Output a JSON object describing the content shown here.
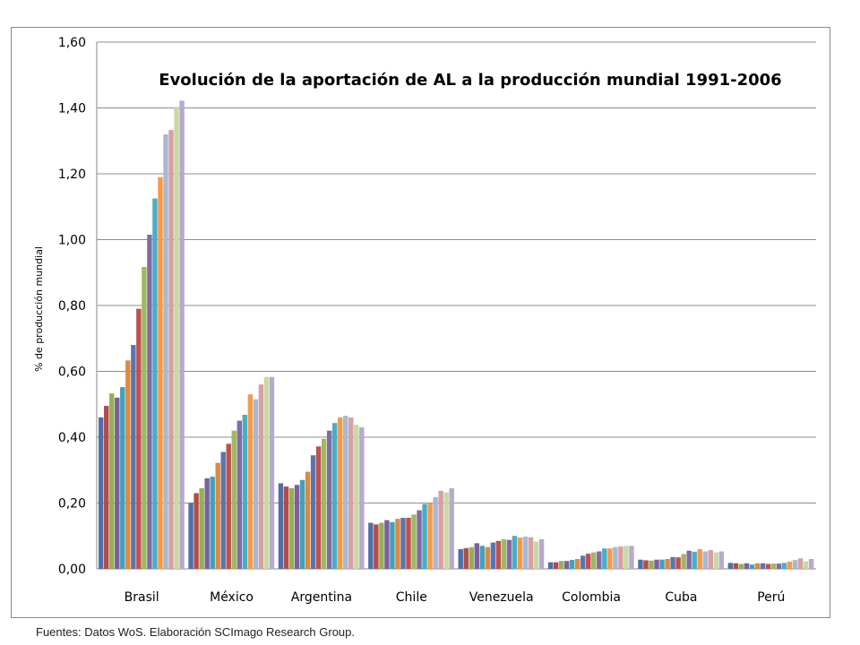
{
  "chart_data": {
    "type": "bar",
    "title": "Evolución de la aportación de AL a la producción mundial 1991-2006",
    "xlabel": "",
    "ylabel": "% de producción mundial",
    "ylim": [
      0,
      1.6
    ],
    "yticks": [
      "0,00",
      "0,20",
      "0,40",
      "0,60",
      "0,80",
      "1,00",
      "1,20",
      "1,40",
      "1,60"
    ],
    "grid": true,
    "legend": "none",
    "categories": [
      "Brasil",
      "México",
      "Argentina",
      "Chile",
      "Venezuela",
      "Colombia",
      "Cuba",
      "Perú"
    ],
    "series": [
      {
        "color": "#4F6FA8",
        "values": [
          0.46,
          0.2,
          0.26,
          0.14,
          0.06,
          0.02,
          0.028,
          0.018
        ]
      },
      {
        "color": "#B24C48",
        "values": [
          0.495,
          0.23,
          0.25,
          0.135,
          0.063,
          0.02,
          0.026,
          0.017
        ]
      },
      {
        "color": "#93B152",
        "values": [
          0.533,
          0.245,
          0.245,
          0.14,
          0.066,
          0.024,
          0.025,
          0.015
        ]
      },
      {
        "color": "#7D5F9C",
        "values": [
          0.52,
          0.275,
          0.255,
          0.148,
          0.078,
          0.024,
          0.028,
          0.017
        ]
      },
      {
        "color": "#43A0B9",
        "values": [
          0.552,
          0.28,
          0.27,
          0.142,
          0.07,
          0.027,
          0.028,
          0.013
        ]
      },
      {
        "color": "#DE8A3E",
        "values": [
          0.633,
          0.322,
          0.295,
          0.152,
          0.066,
          0.03,
          0.03,
          0.017
        ]
      },
      {
        "color": "#5876AD",
        "values": [
          0.68,
          0.355,
          0.345,
          0.155,
          0.08,
          0.04,
          0.036,
          0.017
        ]
      },
      {
        "color": "#BC514E",
        "values": [
          0.79,
          0.38,
          0.372,
          0.155,
          0.085,
          0.046,
          0.035,
          0.015
        ]
      },
      {
        "color": "#9DBA5F",
        "values": [
          0.917,
          0.42,
          0.395,
          0.165,
          0.09,
          0.05,
          0.045,
          0.016
        ]
      },
      {
        "color": "#826AA5",
        "values": [
          1.015,
          0.45,
          0.42,
          0.178,
          0.088,
          0.053,
          0.055,
          0.016
        ]
      },
      {
        "color": "#4BACC6",
        "values": [
          1.125,
          0.468,
          0.443,
          0.197,
          0.1,
          0.062,
          0.052,
          0.018
        ]
      },
      {
        "color": "#F79A46",
        "values": [
          1.19,
          0.53,
          0.46,
          0.2,
          0.095,
          0.062,
          0.06,
          0.022
        ]
      },
      {
        "color": "#A7B8D6",
        "values": [
          1.32,
          0.515,
          0.465,
          0.218,
          0.098,
          0.066,
          0.053,
          0.027
        ]
      },
      {
        "color": "#D8A0A0",
        "values": [
          1.333,
          0.56,
          0.46,
          0.237,
          0.096,
          0.068,
          0.057,
          0.032
        ]
      },
      {
        "color": "#C8D8A6",
        "values": [
          1.403,
          0.583,
          0.438,
          0.232,
          0.083,
          0.07,
          0.05,
          0.023
        ]
      },
      {
        "color": "#B7AACB",
        "values": [
          1.422,
          0.583,
          0.43,
          0.245,
          0.09,
          0.07,
          0.053,
          0.03
        ]
      }
    ],
    "source": "Fuentes: Datos WoS. Elaboración SCImago Research Group."
  }
}
